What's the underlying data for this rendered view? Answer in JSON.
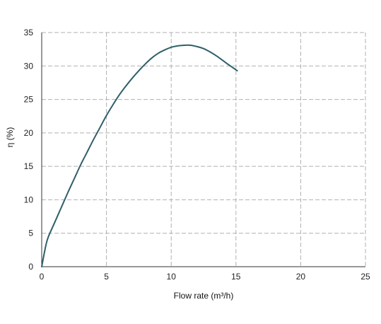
{
  "chart_data": {
    "type": "line",
    "title": "",
    "xlabel": "Flow rate (m³/h)",
    "ylabel": "η (%)",
    "xlim": [
      0,
      25
    ],
    "ylim": [
      0,
      35
    ],
    "x_ticks": [
      0,
      5,
      10,
      15,
      20,
      25
    ],
    "y_ticks": [
      0,
      5,
      10,
      15,
      20,
      25,
      30,
      35
    ],
    "grid": true,
    "line_color": "#2e5f69",
    "grid_color": "#b0b0b0",
    "series": [
      {
        "x": [
          0,
          0.3,
          0.5,
          1,
          1.5,
          2,
          2.5,
          3,
          3.5,
          4,
          4.5,
          5,
          5.5,
          6,
          6.5,
          7,
          7.5,
          8,
          8.5,
          9,
          9.5,
          10,
          10.5,
          11,
          11.5,
          12,
          12.5,
          13,
          13.5,
          14,
          14.5,
          15.1
        ],
        "values": [
          0,
          3.0,
          4.4,
          6.6,
          8.8,
          11.0,
          13.1,
          15.2,
          17.1,
          19.0,
          20.8,
          22.6,
          24.2,
          25.7,
          27.0,
          28.2,
          29.3,
          30.3,
          31.2,
          31.9,
          32.4,
          32.8,
          33.0,
          33.1,
          33.1,
          32.9,
          32.6,
          32.1,
          31.5,
          30.8,
          30.1,
          29.3
        ]
      }
    ]
  }
}
